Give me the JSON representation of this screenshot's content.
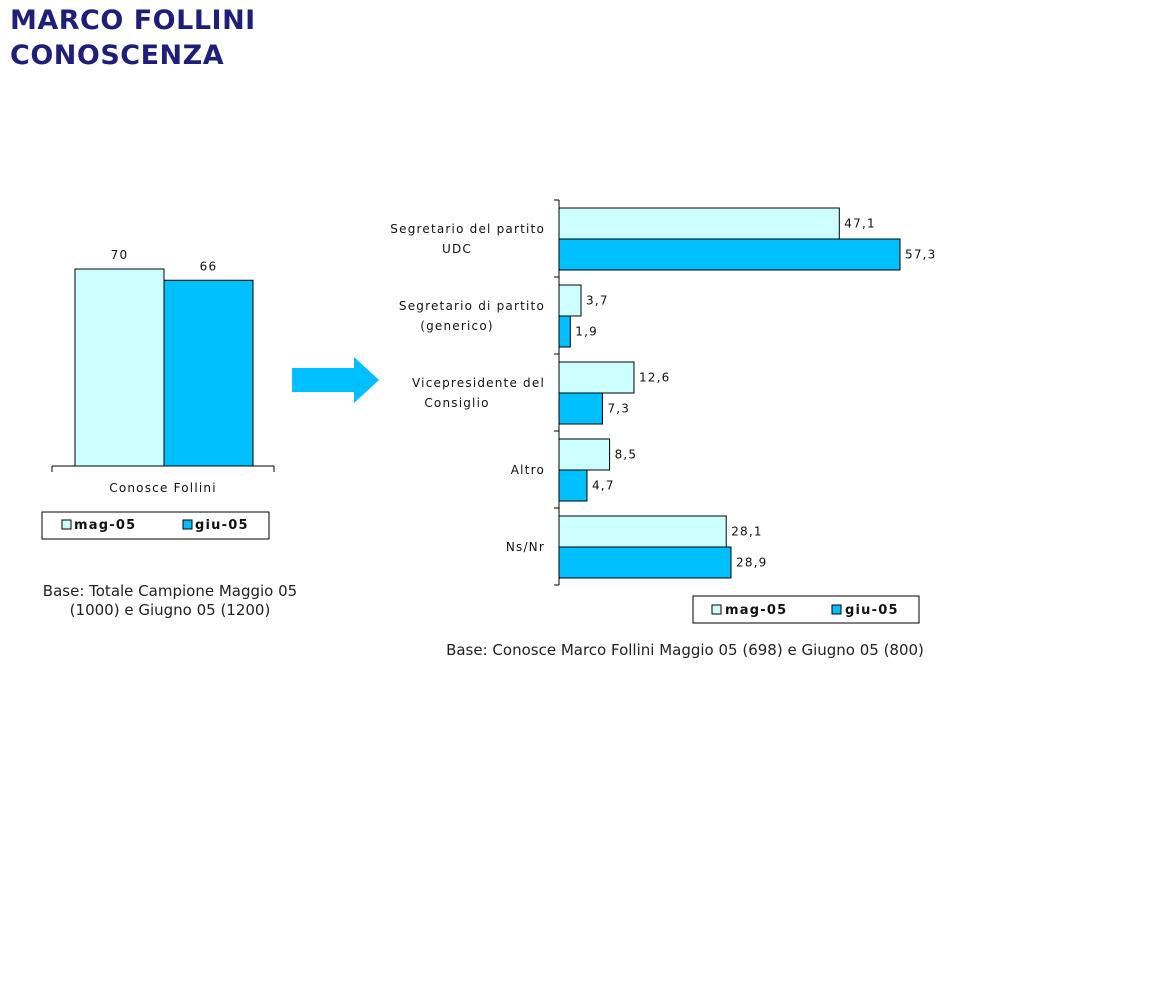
{
  "title": {
    "line1": "MARCO FOLLINI",
    "line2": "CONOSCENZA"
  },
  "colors": {
    "series1": "#ccffff",
    "series2": "#00bfff",
    "title": "#1f1f7a",
    "arrow": "#00bfff"
  },
  "arrow_icon": "right-arrow-icon",
  "chart_data": [
    {
      "type": "bar",
      "orientation": "vertical",
      "categories": [
        "Conosce Follini"
      ],
      "series": [
        {
          "name": "mag-05",
          "values": [
            70
          ]
        },
        {
          "name": "giu-05",
          "values": [
            66
          ]
        }
      ],
      "legend": "bottom",
      "grid": false,
      "note": "Base: Totale Campione  Maggio 05 (1000) e Giugno 05 (1200)"
    },
    {
      "type": "bar",
      "orientation": "horizontal",
      "categories": [
        [
          "Segretario del partito",
          "UDC"
        ],
        [
          "Segretario di partito",
          "(generico)"
        ],
        [
          "Vicepresidente del",
          "Consiglio"
        ],
        [
          "Altro"
        ],
        [
          "Ns/Nr"
        ]
      ],
      "series": [
        {
          "name": "mag-05",
          "values": [
            47.1,
            3.7,
            12.6,
            8.5,
            28.1
          ]
        },
        {
          "name": "giu-05",
          "values": [
            57.3,
            1.9,
            7.3,
            4.7,
            28.9
          ]
        }
      ],
      "legend": "bottom",
      "grid": false,
      "note": "Base: Conosce Marco Follini Maggio 05 (698) e Giugno 05 (800)"
    }
  ]
}
